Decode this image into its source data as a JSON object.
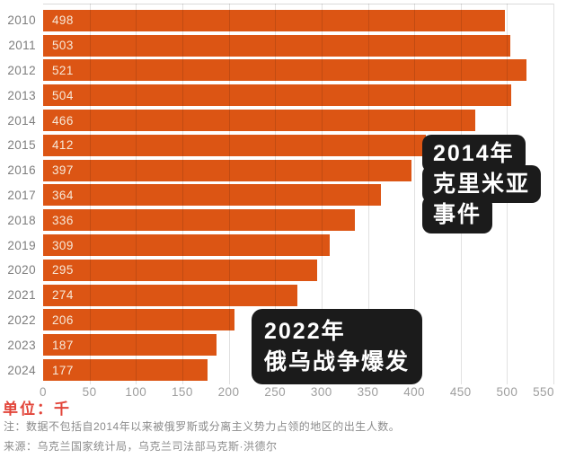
{
  "chart_data": {
    "type": "bar",
    "orientation": "horizontal",
    "categories": [
      "2010",
      "2011",
      "2012",
      "2013",
      "2014",
      "2015",
      "2016",
      "2017",
      "2018",
      "2019",
      "2020",
      "2021",
      "2022",
      "2023",
      "2024"
    ],
    "values": [
      498,
      503,
      521,
      504,
      466,
      412,
      397,
      364,
      336,
      309,
      295,
      274,
      206,
      187,
      177
    ],
    "xlim": [
      0,
      550
    ],
    "xticks": [
      0,
      50,
      100,
      150,
      200,
      250,
      300,
      350,
      400,
      450,
      500,
      550
    ],
    "grid": true,
    "legend": null,
    "annotations": [
      {
        "name": "crimea-2014",
        "style": "stepped",
        "lines": [
          "2014年",
          "克里米亚",
          "事件"
        ]
      },
      {
        "name": "war-2022",
        "style": "solid",
        "lines": [
          "2022年",
          "俄乌战争爆发"
        ]
      }
    ],
    "unit_label": "单位：千",
    "note": "注：数据不包括自2014年以来被俄罗斯或分离主义势力占领的地区的出生人数。",
    "source": "来源：乌克兰国家统计局，乌克兰司法部马克斯·洪德尔"
  },
  "colors": {
    "bar": "#dc5514",
    "bar_value_text": "#f7e9d9",
    "annotation_bg": "#1b1b1b",
    "unit_red": "#e2453a"
  }
}
